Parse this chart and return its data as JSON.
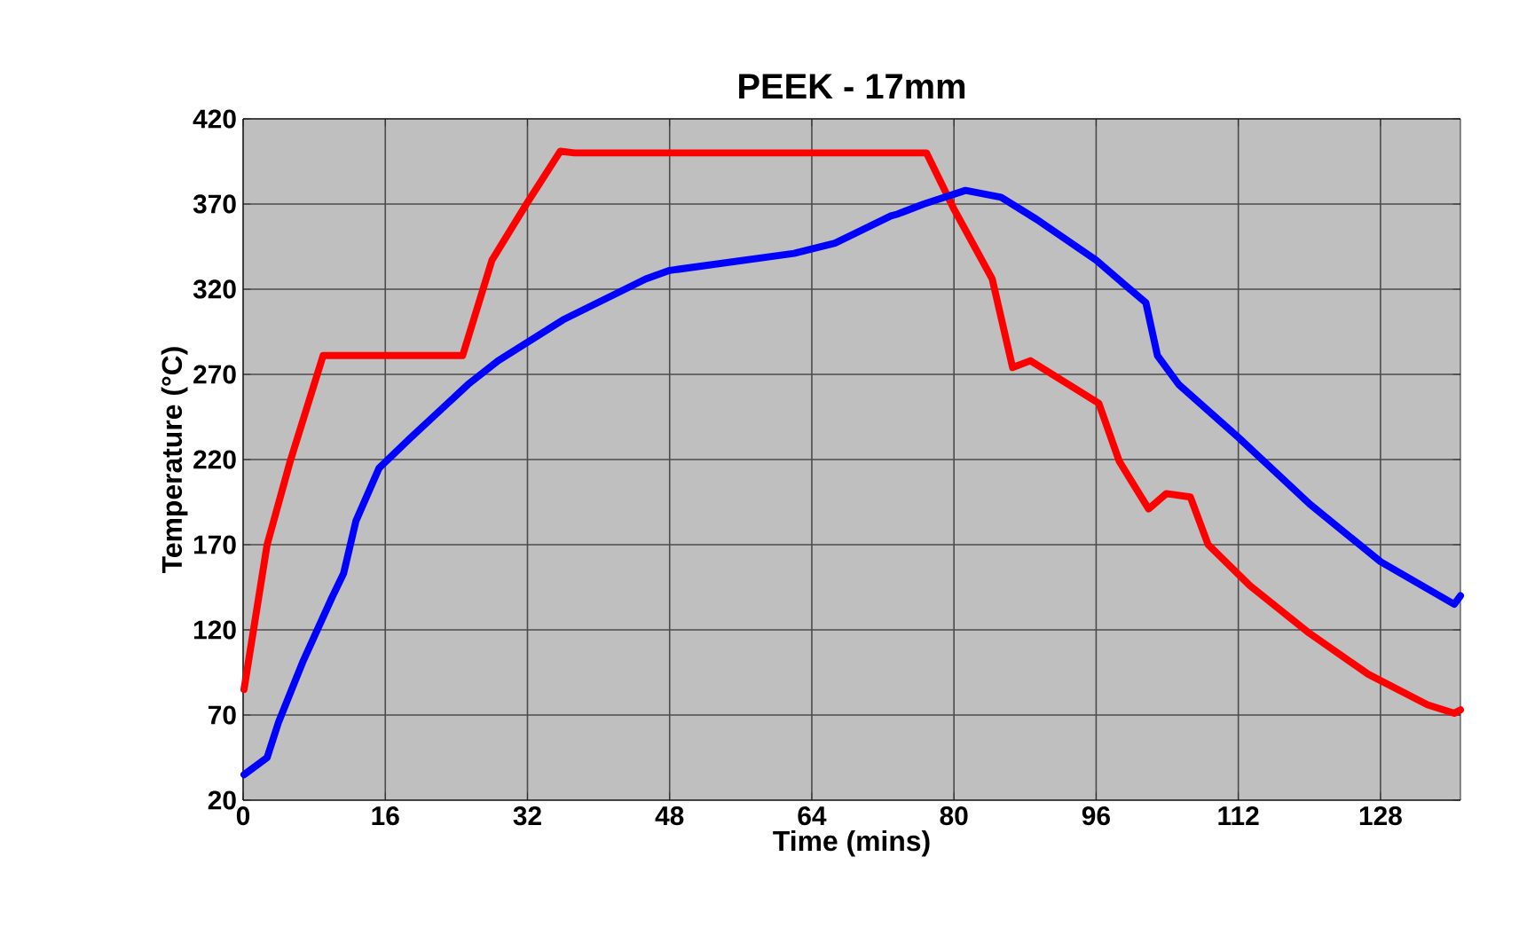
{
  "chart_data": {
    "type": "line",
    "title": "PEEK - 17mm",
    "xlabel": "Time (mins)",
    "ylabel": "Temperature (°C)",
    "xlim": [
      0,
      137
    ],
    "xticks": [
      0,
      16,
      32,
      48,
      64,
      80,
      96,
      112,
      128
    ],
    "ylim": [
      20,
      420
    ],
    "yticks": [
      20,
      70,
      120,
      170,
      220,
      270,
      320,
      370,
      420
    ],
    "grid": true,
    "marker": "none",
    "line_style": "solid",
    "series": [
      {
        "color": "#ff0000",
        "x": [
          0.1,
          2.7,
          5.3,
          9,
          10,
          24.7,
          28,
          32,
          35.7,
          37.3,
          76.9,
          79.9,
          84.3,
          86.6,
          88.6,
          96.3,
          98.6,
          101.9,
          103.9,
          106.6,
          108.6,
          113.3,
          120,
          126.6,
          133.3,
          136.3,
          137
        ],
        "values": [
          85,
          170,
          219,
          281,
          281,
          281,
          337,
          371,
          401,
          400,
          400,
          368,
          326,
          274,
          278,
          253,
          219,
          191,
          200,
          198,
          170,
          146,
          118,
          94,
          76,
          71,
          73
        ]
      },
      {
        "color": "#0000ff",
        "x": [
          0.1,
          2.7,
          4,
          6.7,
          10,
          11.3,
          12.7,
          15.3,
          18.7,
          25.3,
          28.7,
          36,
          45.3,
          48,
          62,
          66.6,
          72.9,
          73.6,
          76.6,
          81.3,
          85.3,
          89.3,
          96,
          101.6,
          102.9,
          105.3,
          112,
          120,
          128,
          136.3,
          137
        ],
        "values": [
          35,
          45,
          66,
          101,
          139,
          153,
          184,
          215,
          232,
          264,
          278,
          302,
          326,
          331,
          341,
          347,
          363,
          364,
          370,
          378,
          374,
          361,
          337,
          312,
          281,
          264,
          233,
          194,
          160,
          135,
          140
        ]
      }
    ]
  }
}
